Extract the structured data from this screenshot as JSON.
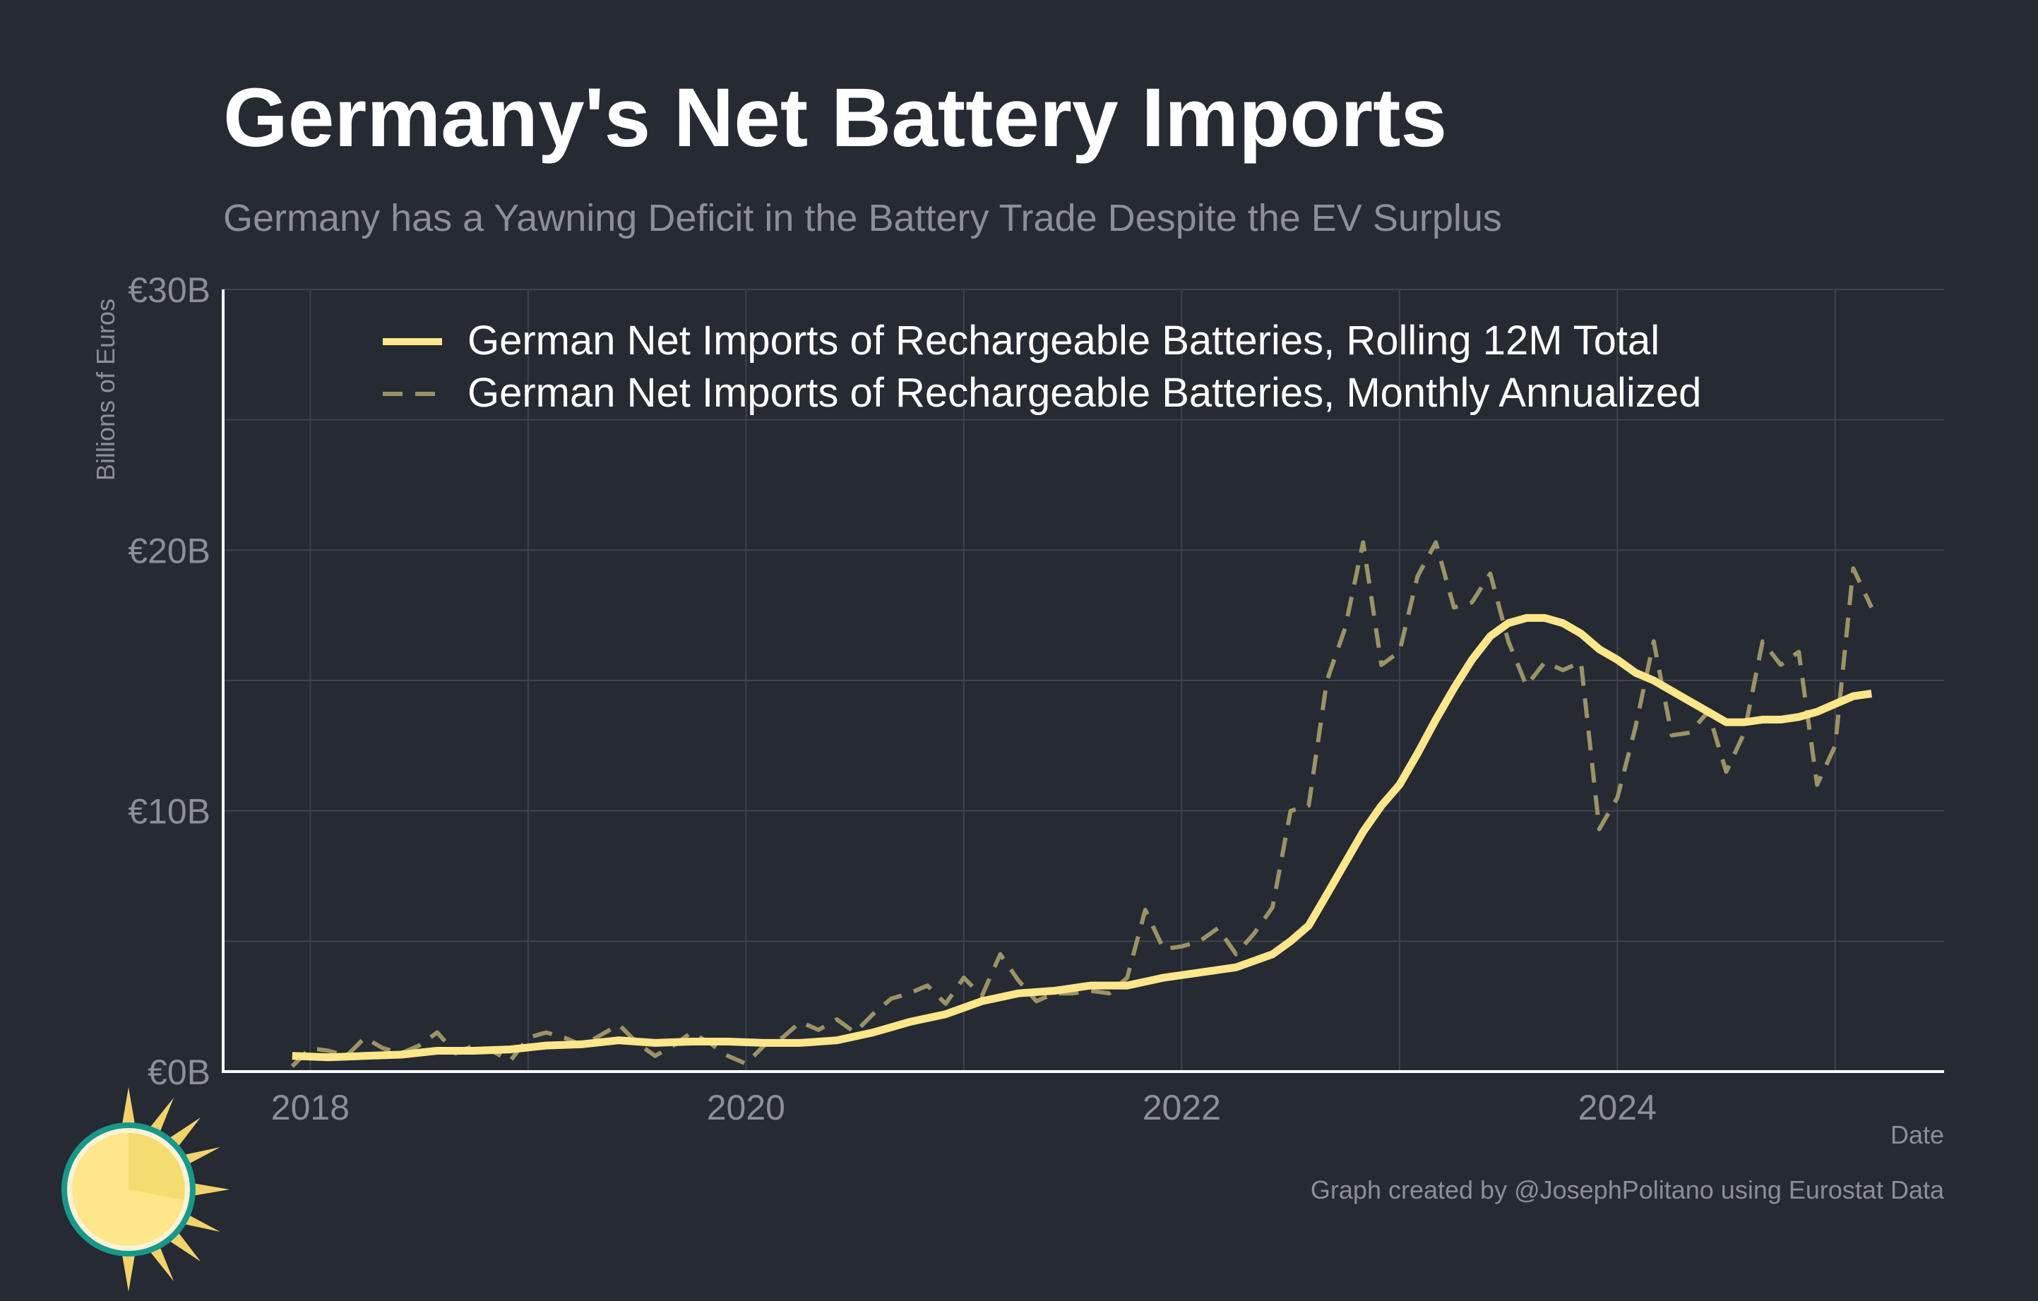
{
  "header": {
    "title": "Germany's Net Battery Imports",
    "subtitle": "Germany has a Yawning Deficit in the Battery Trade Despite the EV Surplus"
  },
  "footer": {
    "caption": "Graph created by @JosephPolitano using Eurostat Data"
  },
  "colors": {
    "background": "#252a33",
    "rolling": "#fee68a",
    "monthly": "#9b9366",
    "grid": "#3e434c",
    "tick_text": "#8c8f96",
    "axis_line": "#ffffff"
  },
  "logo": {
    "icon": "sun-logo-icon"
  },
  "chart_data": {
    "type": "line",
    "title": "Germany's Net Battery Imports",
    "subtitle": "Germany has a Yawning Deficit in the Battery Trade Despite the EV Surplus",
    "xlabel": "Date",
    "ylabel": "Billions of Euros",
    "xlim": [
      2017.6,
      2025.5
    ],
    "ylim": [
      0,
      30
    ],
    "yticks": [
      0,
      10,
      20,
      30
    ],
    "ytick_labels": [
      "€0B",
      "€10B",
      "€20B",
      "€30B"
    ],
    "xticks": [
      2018,
      2020,
      2022,
      2024
    ],
    "xtick_labels": [
      "2018",
      "2020",
      "2022",
      "2024"
    ],
    "grid": true,
    "legend_position": "top",
    "series": [
      {
        "name": "German Net Imports of Rechargeable Batteries, Rolling 12M Total",
        "style": "solid",
        "color": "#fee68a",
        "x": [
          2017.917,
          2018.083,
          2018.25,
          2018.417,
          2018.583,
          2018.75,
          2018.917,
          2019.083,
          2019.25,
          2019.417,
          2019.583,
          2019.75,
          2019.917,
          2020.083,
          2020.25,
          2020.417,
          2020.583,
          2020.75,
          2020.917,
          2021.083,
          2021.25,
          2021.417,
          2021.583,
          2021.75,
          2021.917,
          2022.083,
          2022.25,
          2022.417,
          2022.5,
          2022.583,
          2022.667,
          2022.75,
          2022.833,
          2022.917,
          2023.0,
          2023.083,
          2023.167,
          2023.25,
          2023.333,
          2023.417,
          2023.5,
          2023.583,
          2023.667,
          2023.75,
          2023.833,
          2023.917,
          2024.0,
          2024.083,
          2024.167,
          2024.25,
          2024.333,
          2024.417,
          2024.5,
          2024.583,
          2024.667,
          2024.75,
          2024.833,
          2024.917,
          2025.0,
          2025.083,
          2025.167
        ],
        "values": [
          0.6,
          0.55,
          0.6,
          0.65,
          0.8,
          0.8,
          0.85,
          1.0,
          1.05,
          1.2,
          1.1,
          1.15,
          1.15,
          1.1,
          1.1,
          1.2,
          1.5,
          1.9,
          2.2,
          2.7,
          3.0,
          3.1,
          3.3,
          3.3,
          3.6,
          3.8,
          4.0,
          4.5,
          5.0,
          5.6,
          6.8,
          8.0,
          9.2,
          10.2,
          11.0,
          12.2,
          13.5,
          14.7,
          15.8,
          16.7,
          17.2,
          17.4,
          17.4,
          17.2,
          16.8,
          16.2,
          15.8,
          15.3,
          15.0,
          14.6,
          14.2,
          13.8,
          13.4,
          13.4,
          13.5,
          13.5,
          13.6,
          13.8,
          14.1,
          14.4,
          14.5
        ]
      },
      {
        "name": "German Net Imports of Rechargeable Batteries, Monthly Annualized",
        "style": "dashed",
        "color": "#9b9366",
        "x": [
          2017.917,
          2018.0,
          2018.083,
          2018.167,
          2018.25,
          2018.333,
          2018.417,
          2018.5,
          2018.583,
          2018.667,
          2018.75,
          2018.833,
          2018.917,
          2019.0,
          2019.083,
          2019.167,
          2019.25,
          2019.333,
          2019.417,
          2019.5,
          2019.583,
          2019.667,
          2019.75,
          2019.833,
          2019.917,
          2020.0,
          2020.083,
          2020.167,
          2020.25,
          2020.333,
          2020.417,
          2020.5,
          2020.583,
          2020.667,
          2020.75,
          2020.833,
          2020.917,
          2021.0,
          2021.083,
          2021.167,
          2021.25,
          2021.333,
          2021.417,
          2021.5,
          2021.583,
          2021.667,
          2021.75,
          2021.833,
          2021.917,
          2022.0,
          2022.083,
          2022.167,
          2022.25,
          2022.333,
          2022.417,
          2022.5,
          2022.583,
          2022.667,
          2022.75,
          2022.833,
          2022.917,
          2023.0,
          2023.083,
          2023.167,
          2023.25,
          2023.333,
          2023.417,
          2023.5,
          2023.583,
          2023.667,
          2023.75,
          2023.833,
          2023.917,
          2024.0,
          2024.083,
          2024.167,
          2024.25,
          2024.333,
          2024.417,
          2024.5,
          2024.583,
          2024.667,
          2024.75,
          2024.833,
          2024.917,
          2025.0,
          2025.083,
          2025.167
        ],
        "values": [
          0.2,
          0.9,
          0.8,
          0.6,
          1.3,
          0.9,
          0.7,
          1.0,
          1.5,
          0.7,
          1.0,
          0.8,
          0.4,
          1.3,
          1.5,
          1.3,
          1.0,
          1.4,
          1.8,
          1.1,
          0.6,
          1.0,
          1.5,
          1.1,
          0.6,
          0.3,
          1.0,
          1.3,
          1.9,
          1.6,
          2.0,
          1.5,
          2.2,
          2.8,
          3.0,
          3.3,
          2.6,
          3.6,
          2.9,
          4.5,
          3.5,
          2.7,
          3.0,
          3.0,
          3.1,
          3.0,
          3.6,
          6.2,
          4.7,
          4.8,
          5.0,
          5.5,
          4.5,
          5.3,
          6.3,
          10.0,
          10.2,
          15.0,
          17.0,
          20.3,
          15.6,
          16.1,
          19.0,
          20.3,
          17.8,
          18.0,
          19.1,
          16.5,
          14.8,
          15.7,
          15.4,
          15.7,
          9.3,
          10.5,
          13.2,
          16.5,
          12.9,
          13.0,
          13.8,
          11.5,
          13.0,
          16.5,
          15.6,
          16.1,
          11.0,
          12.5,
          19.3,
          17.8
        ]
      }
    ]
  }
}
